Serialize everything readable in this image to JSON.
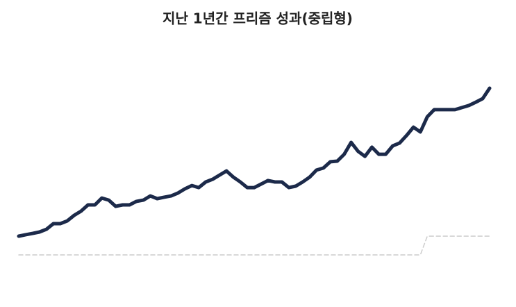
{
  "chart_data": {
    "type": "line",
    "title": "지난 1년간 프리즘 성과(중립형)",
    "categories": [
      null,
      null,
      null,
      null,
      null,
      null,
      null,
      null,
      null,
      null,
      null,
      null,
      null,
      null,
      null,
      null,
      null,
      null,
      null,
      null,
      null,
      null,
      null,
      null,
      null,
      null,
      null,
      null,
      null,
      null,
      null,
      null,
      null,
      null,
      null,
      null,
      null,
      null,
      null,
      null,
      null,
      null,
      null,
      null,
      null,
      null,
      null,
      null,
      null,
      null,
      null,
      null,
      null,
      null,
      null,
      null,
      null,
      null,
      null,
      null,
      null,
      null,
      null,
      null,
      null,
      null,
      null,
      null,
      null
    ],
    "series": [
      {
        "color": "#1c2a4a",
        "dashed": false,
        "values": [
          20,
          20.7,
          21.3,
          22,
          23.3,
          26,
          26,
          27.3,
          30,
          32,
          35,
          35,
          38.3,
          37.3,
          34.3,
          35,
          35,
          36.7,
          37.3,
          39.3,
          38,
          38.7,
          39.3,
          40.7,
          42.7,
          44.3,
          43.3,
          46,
          47.3,
          49.3,
          51.3,
          48.3,
          46,
          43.3,
          43.3,
          45,
          46.7,
          46,
          46,
          43.3,
          44,
          46,
          48.3,
          51.7,
          52.7,
          55.7,
          56,
          59.3,
          65,
          60.7,
          58.3,
          62.7,
          59.3,
          59.3,
          63.3,
          64.7,
          68.3,
          72.3,
          70,
          77.3,
          80.7,
          80.7,
          80.7,
          80.7,
          81.7,
          82.7,
          84.3,
          86,
          91
        ]
      },
      {
        "color": "#cccccc",
        "dashed": true,
        "values": [
          11,
          11,
          11,
          11,
          11,
          11,
          11,
          11,
          11,
          11,
          11,
          11,
          11,
          11,
          11,
          11,
          11,
          11,
          11,
          11,
          11,
          11,
          11,
          11,
          11,
          11,
          11,
          11,
          11,
          11,
          11,
          11,
          11,
          11,
          11,
          11,
          11,
          11,
          11,
          11,
          11,
          11,
          11,
          11,
          11,
          11,
          11,
          11,
          11,
          11,
          11,
          11,
          11,
          11,
          11,
          11,
          11,
          11,
          11,
          20,
          20,
          20,
          20,
          20,
          20,
          20,
          20,
          20,
          20
        ]
      }
    ],
    "ylim": [
      0,
      100
    ],
    "grid": false
  }
}
